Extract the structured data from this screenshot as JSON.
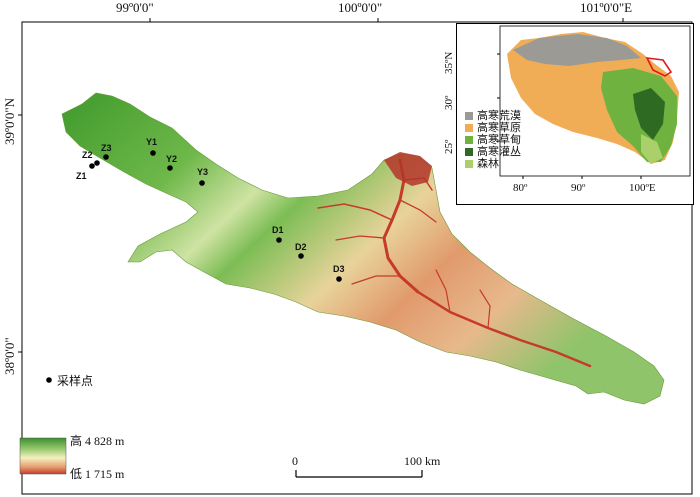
{
  "map": {
    "top_longitude_labels": [
      "99º0'0\"",
      "100º0'0\"",
      "101º0'0\"E"
    ],
    "left_latitude_labels": [
      "39º0'0\"N",
      "38º0'0\""
    ],
    "sampling_sites": [
      "Z2",
      "Z3",
      "Z1",
      "Y1",
      "Y2",
      "Y3",
      "D1",
      "D2",
      "D3"
    ],
    "legend": {
      "sample_point_label": "采样点",
      "elevation_high": "高 4 828 m",
      "elevation_low": "低 1 715 m"
    },
    "scale_bar": {
      "start_label": "0",
      "end_label": "100 km"
    }
  },
  "inset": {
    "y_ticks": [
      "35ºN",
      "30º",
      "25º"
    ],
    "x_ticks": [
      "80º",
      "90º",
      "100ºE"
    ],
    "legend_items": [
      {
        "label": "高寒荒漠",
        "color": "#9b9a95"
      },
      {
        "label": "高寒草原",
        "color": "#f1ad55"
      },
      {
        "label": "高寒草甸",
        "color": "#6fb23f"
      },
      {
        "label": "高寒灌丛",
        "color": "#2f6a23"
      },
      {
        "label": "森林",
        "color": "#a9d06b"
      }
    ],
    "study_area_outline_color": "#e01a1a"
  }
}
